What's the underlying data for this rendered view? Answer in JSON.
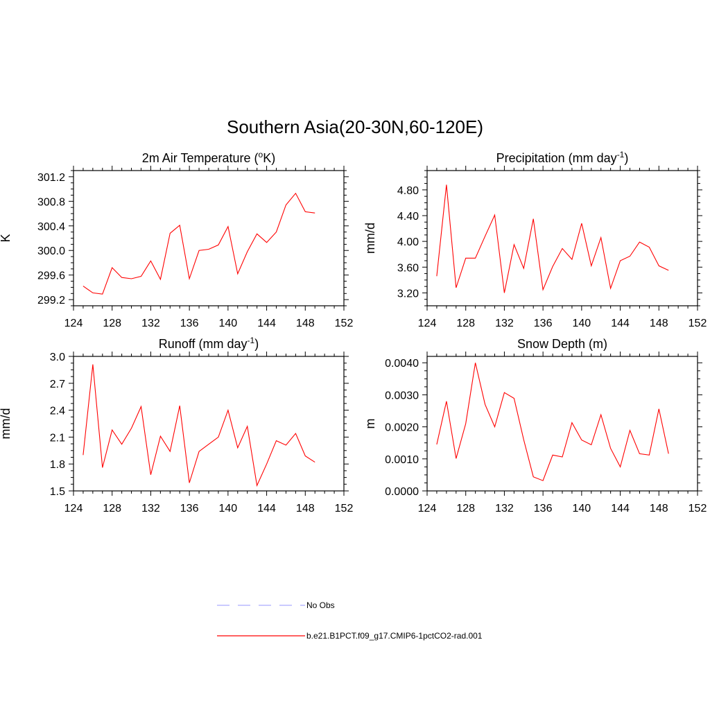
{
  "figure": {
    "title": "Southern Asia(20-30N,60-120E)"
  },
  "legend": {
    "items": [
      {
        "label": "No Obs",
        "color": "#aaaaff",
        "style": "dashed"
      },
      {
        "label": "b.e21.B1PCT.f09_g17.CMIP6-1pctCO2-rad.001",
        "color": "#ff0000",
        "style": "solid"
      }
    ]
  },
  "chart_data": [
    {
      "type": "line",
      "title": "2m Air Temperature (°K)",
      "title_main": "2m Air Temperature (",
      "title_sup": "o",
      "title_tail": "K)",
      "ylabel": "K",
      "xlim": [
        124,
        152
      ],
      "ylim": [
        299.1,
        301.3
      ],
      "xticks": [
        "124",
        "128",
        "132",
        "136",
        "140",
        "144",
        "148",
        "152"
      ],
      "yticks": [
        "299.2",
        "299.6",
        "300.0",
        "300.4",
        "300.8",
        "301.2"
      ],
      "x": [
        125,
        126,
        127,
        128,
        129,
        130,
        131,
        132,
        133,
        134,
        135,
        136,
        137,
        138,
        139,
        140,
        141,
        142,
        143,
        144,
        145,
        146,
        147,
        148,
        149
      ],
      "series": [
        {
          "color": "#ff0000",
          "values": [
            299.42,
            299.31,
            299.29,
            299.72,
            299.56,
            299.54,
            299.58,
            299.83,
            299.53,
            300.28,
            300.41,
            299.54,
            300.0,
            300.02,
            300.09,
            300.39,
            299.62,
            299.98,
            300.27,
            300.13,
            300.3,
            300.74,
            300.93,
            300.63,
            300.61
          ]
        }
      ]
    },
    {
      "type": "line",
      "title": "Precipitation (mm day-1)",
      "title_main": "Precipitation (mm day",
      "title_sup": "-1",
      "title_tail": ")",
      "ylabel": "mm/d",
      "xlim": [
        124,
        152
      ],
      "ylim": [
        3.0,
        5.1
      ],
      "xticks": [
        "124",
        "128",
        "132",
        "136",
        "140",
        "144",
        "148",
        "152"
      ],
      "yticks": [
        "3.20",
        "3.60",
        "4.00",
        "4.40",
        "4.80"
      ],
      "x": [
        125,
        126,
        127,
        128,
        129,
        130,
        131,
        132,
        133,
        134,
        135,
        136,
        137,
        138,
        139,
        140,
        141,
        142,
        143,
        144,
        145,
        146,
        147,
        148,
        149
      ],
      "series": [
        {
          "color": "#ff0000",
          "values": [
            3.46,
            4.88,
            3.28,
            3.74,
            3.74,
            4.08,
            4.41,
            3.2,
            3.95,
            3.58,
            4.35,
            3.25,
            3.61,
            3.89,
            3.72,
            4.28,
            3.62,
            4.06,
            3.27,
            3.7,
            3.77,
            3.99,
            3.91,
            3.62,
            3.55
          ]
        }
      ]
    },
    {
      "type": "line",
      "title": "Runoff (mm day-1)",
      "title_main": "Runoff (mm day",
      "title_sup": "-1",
      "title_tail": ")",
      "ylabel": "mm/d",
      "xlim": [
        124,
        152
      ],
      "ylim": [
        1.5,
        3.0
      ],
      "xticks": [
        "124",
        "128",
        "132",
        "136",
        "140",
        "144",
        "148",
        "152"
      ],
      "yticks": [
        "1.5",
        "1.8",
        "2.1",
        "2.4",
        "2.7",
        "3.0"
      ],
      "x": [
        125,
        126,
        127,
        128,
        129,
        130,
        131,
        132,
        133,
        134,
        135,
        136,
        137,
        138,
        139,
        140,
        141,
        142,
        143,
        144,
        145,
        146,
        147,
        148,
        149
      ],
      "series": [
        {
          "color": "#ff0000",
          "values": [
            1.9,
            2.91,
            1.76,
            2.18,
            2.02,
            2.2,
            2.44,
            1.68,
            2.11,
            1.94,
            2.45,
            1.59,
            1.94,
            2.02,
            2.1,
            2.4,
            1.98,
            2.22,
            1.56,
            1.8,
            2.06,
            2.01,
            2.14,
            1.89,
            1.82
          ]
        }
      ]
    },
    {
      "type": "line",
      "title": "Snow Depth (m)",
      "title_main": "Snow Depth (m)",
      "title_sup": "",
      "title_tail": "",
      "ylabel": "m",
      "xlim": [
        124,
        152
      ],
      "ylim": [
        0.0,
        0.0042
      ],
      "xticks": [
        "124",
        "128",
        "132",
        "136",
        "140",
        "144",
        "148",
        "152"
      ],
      "yticks": [
        "0.0000",
        "0.0010",
        "0.0020",
        "0.0030",
        "0.0040"
      ],
      "x": [
        125,
        126,
        127,
        128,
        129,
        130,
        131,
        132,
        133,
        134,
        135,
        136,
        137,
        138,
        139,
        140,
        141,
        142,
        143,
        144,
        145,
        146,
        147,
        148,
        149
      ],
      "series": [
        {
          "color": "#ff0000",
          "values": [
            0.00145,
            0.0028,
            0.00101,
            0.0021,
            0.004,
            0.0027,
            0.002,
            0.00307,
            0.00289,
            0.0016,
            0.00044,
            0.00032,
            0.00112,
            0.00106,
            0.00213,
            0.00159,
            0.00144,
            0.00238,
            0.00133,
            0.00075,
            0.00189,
            0.00116,
            0.00112,
            0.00256,
            0.00116
          ]
        }
      ]
    }
  ]
}
